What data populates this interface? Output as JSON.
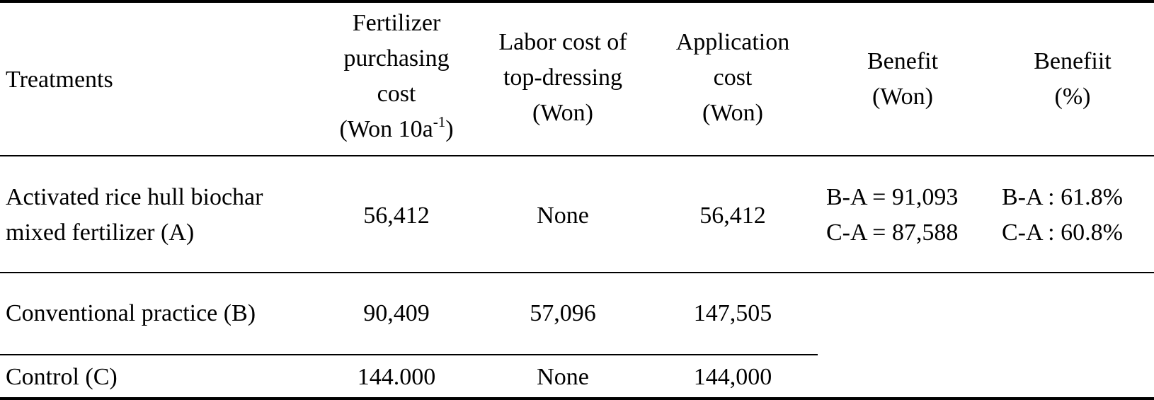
{
  "table": {
    "header": {
      "treatments": "Treatments",
      "fertilizer_line1": "Fertilizer",
      "fertilizer_line2": "purchasing",
      "fertilizer_line3": "cost",
      "fertilizer_line4_main": "(Won 10a",
      "fertilizer_line4_sup": "-1",
      "fertilizer_line4_end": ")",
      "labor_line1": "Labor cost of",
      "labor_line2": "top-dressing",
      "labor_line3": "(Won)",
      "application_line1": "Application",
      "application_line2": "cost",
      "application_line3": "(Won)",
      "benefit_won_line1": "Benefit",
      "benefit_won_line2": "(Won)",
      "benefit_pct_line1": "Benefiit",
      "benefit_pct_line2": "(%)"
    },
    "rows": [
      {
        "treatment_line1": "Activated rice hull biochar",
        "treatment_line2": "mixed fertilizer (A)",
        "fertilizer": "56,412",
        "labor": "None",
        "application": "56,412",
        "benefit_won_line1": "B-A = 91,093",
        "benefit_won_line2": "C-A = 87,588",
        "benefit_pct_line1": "B-A : 61.8%",
        "benefit_pct_line2": "C-A : 60.8%"
      },
      {
        "treatment": "Conventional practice (B)",
        "fertilizer": "90,409",
        "labor": "57,096",
        "application": "147,505"
      },
      {
        "treatment": "Control (C)",
        "fertilizer": "144.000",
        "labor": "None",
        "application": "144,000"
      }
    ]
  }
}
